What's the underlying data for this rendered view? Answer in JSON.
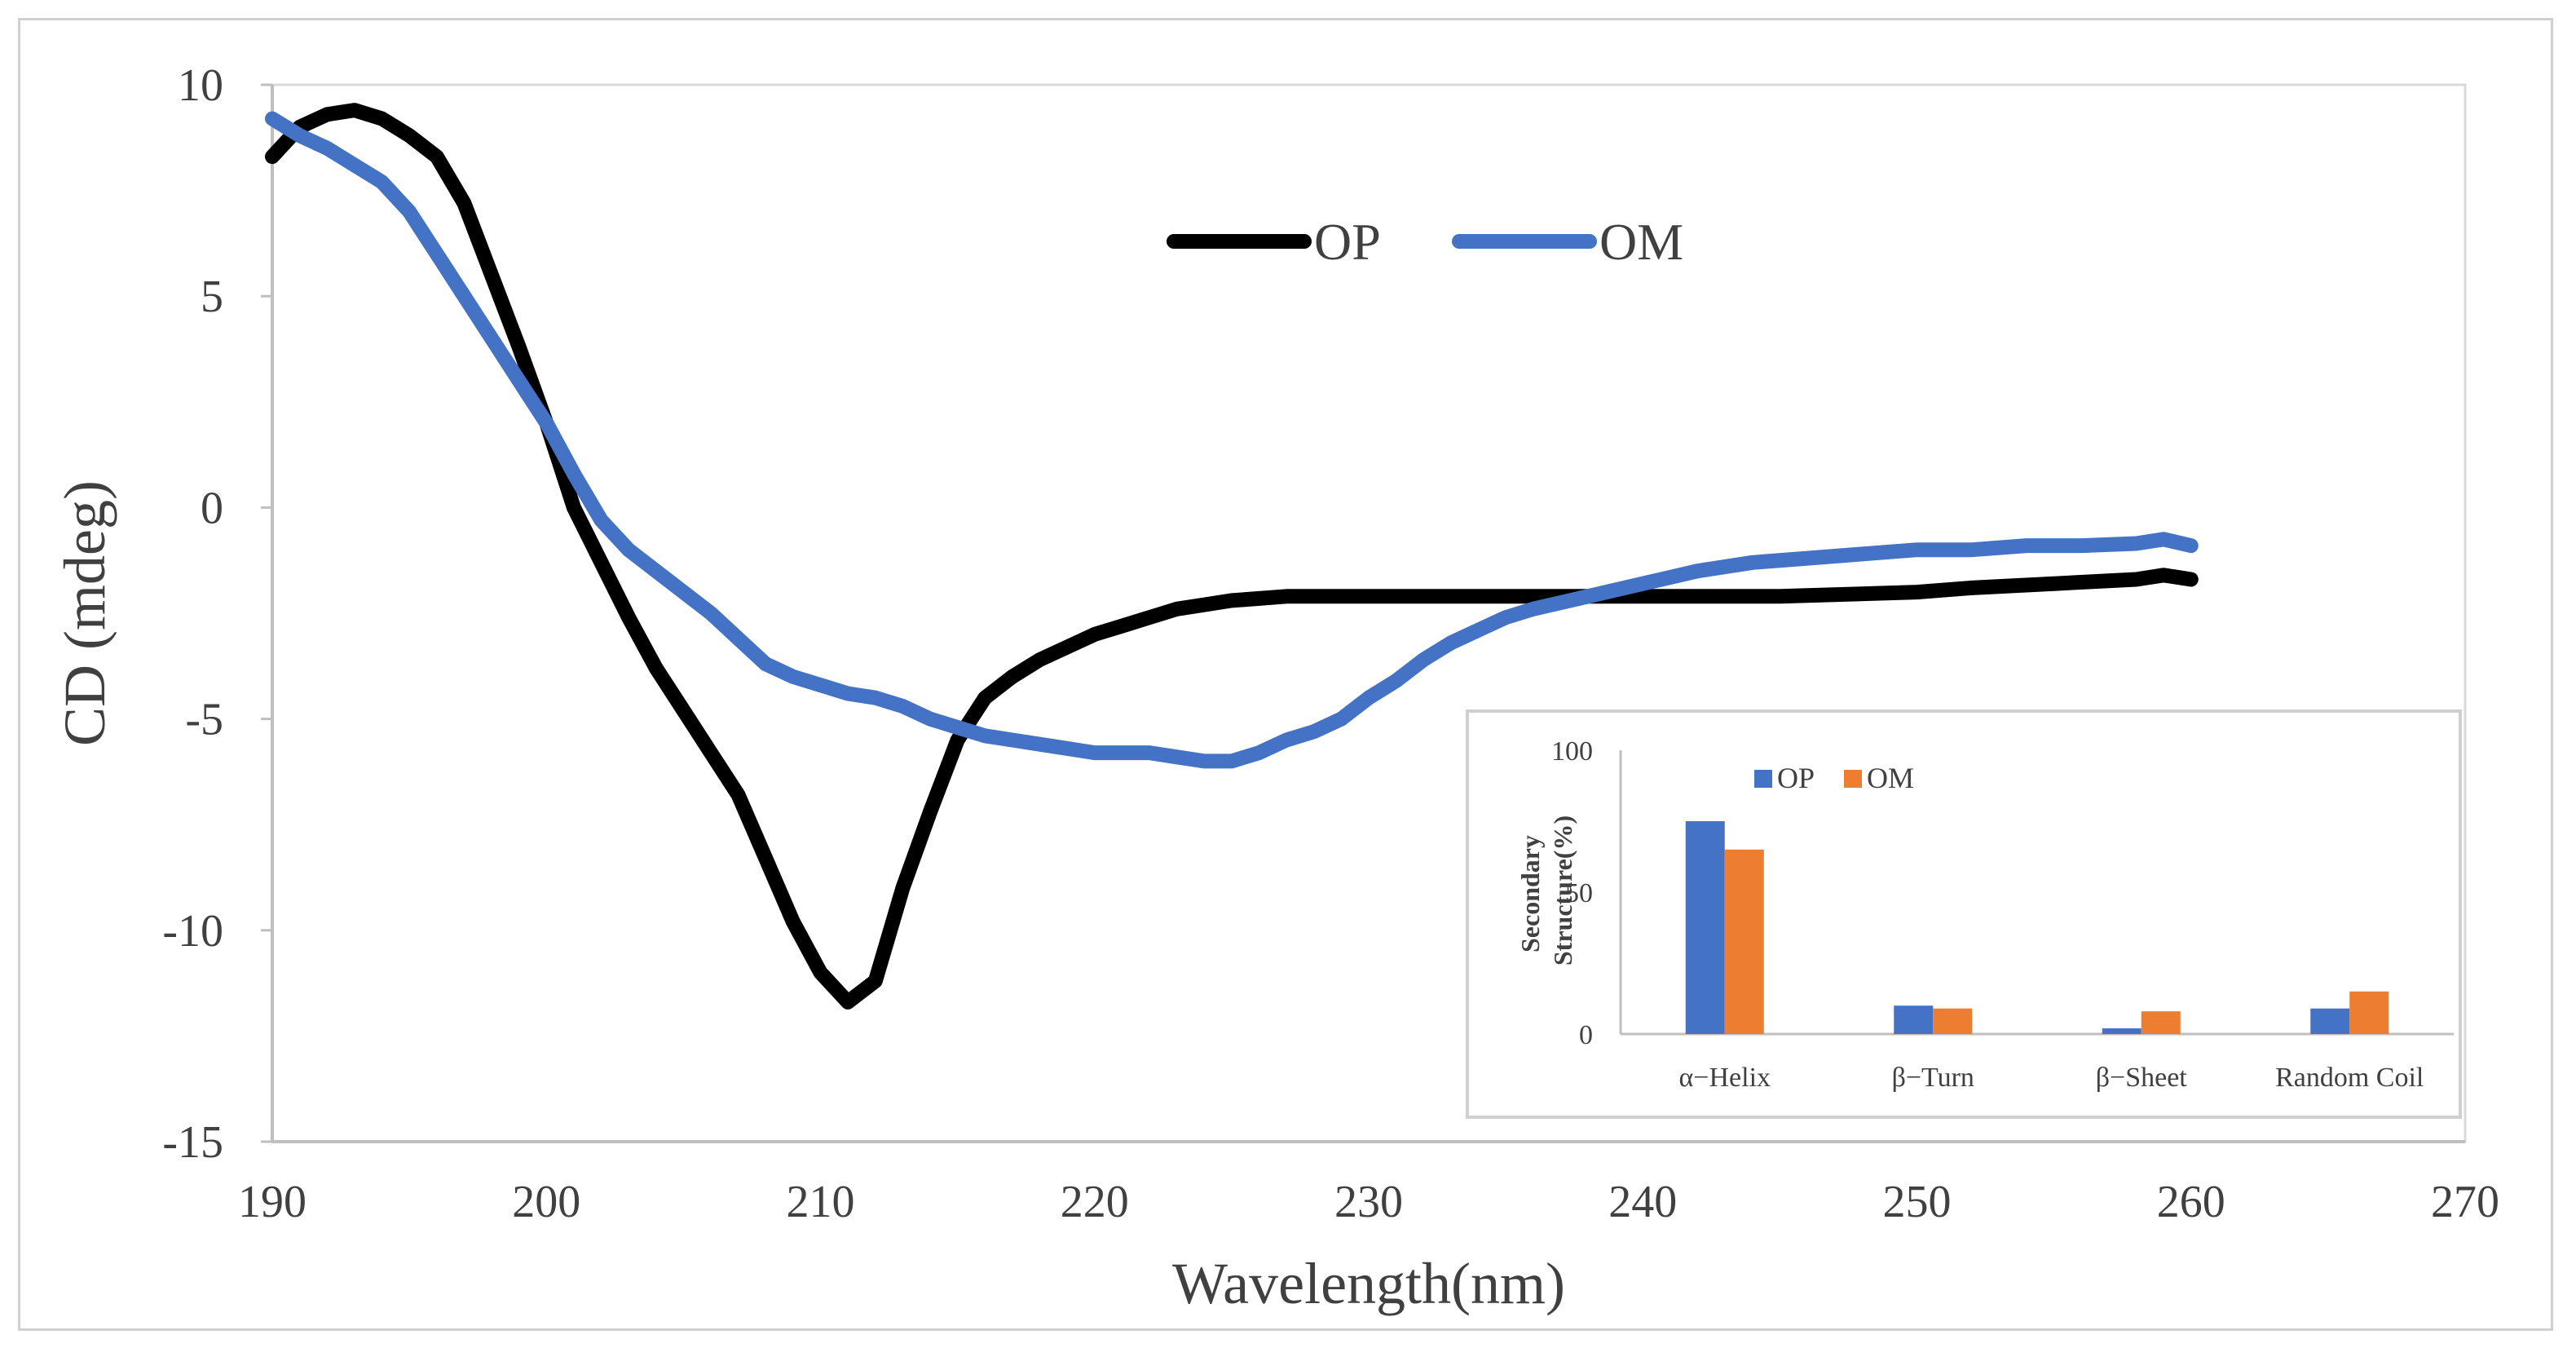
{
  "chart_data": [
    {
      "type": "line",
      "xlabel": "Wavelength(nm)",
      "ylabel": "CD (mdeg)",
      "xlim": [
        190,
        270
      ],
      "ylim": [
        -15,
        10
      ],
      "xticks": [
        "190",
        "200",
        "210",
        "220",
        "230",
        "240",
        "250",
        "260",
        "270"
      ],
      "yticks": [
        "10",
        "5",
        "0",
        "-5",
        "-10",
        "-15"
      ],
      "grid": false,
      "legend_position": "top-center",
      "colors": {
        "OP": "#000000",
        "OM": "#4472C4"
      },
      "series": [
        {
          "name": "OP",
          "x": [
            190,
            191,
            192,
            193,
            194,
            195,
            196,
            197,
            198,
            199,
            200,
            201,
            202,
            203,
            204,
            205,
            206,
            207,
            208,
            209,
            210,
            211,
            212,
            213,
            214,
            215,
            216,
            217,
            218,
            219,
            220,
            221,
            222,
            223,
            224,
            225,
            226,
            227,
            228,
            230,
            235,
            240,
            245,
            250,
            252,
            255,
            258,
            259,
            260
          ],
          "values": [
            8.3,
            9.0,
            9.3,
            9.4,
            9.2,
            8.8,
            8.3,
            7.2,
            5.5,
            3.8,
            2.0,
            0.0,
            -1.3,
            -2.6,
            -3.8,
            -4.8,
            -5.8,
            -6.8,
            -8.3,
            -9.8,
            -11.0,
            -11.7,
            -11.2,
            -9.0,
            -7.2,
            -5.5,
            -4.5,
            -4.0,
            -3.6,
            -3.3,
            -3.0,
            -2.8,
            -2.6,
            -2.4,
            -2.3,
            -2.2,
            -2.15,
            -2.1,
            -2.1,
            -2.1,
            -2.1,
            -2.1,
            -2.1,
            -2.0,
            -1.9,
            -1.8,
            -1.7,
            -1.6,
            -1.7
          ]
        },
        {
          "name": "OM",
          "x": [
            190,
            191,
            192,
            193,
            194,
            195,
            196,
            197,
            198,
            199,
            200,
            201,
            202,
            203,
            204,
            205,
            206,
            207,
            208,
            209,
            210,
            211,
            212,
            213,
            214,
            215,
            216,
            217,
            218,
            219,
            220,
            221,
            222,
            223,
            224,
            225,
            226,
            227,
            228,
            229,
            230,
            231,
            232,
            233,
            234,
            235,
            236,
            238,
            240,
            242,
            244,
            246,
            248,
            250,
            252,
            254,
            256,
            258,
            259,
            260
          ],
          "values": [
            9.2,
            8.8,
            8.5,
            8.1,
            7.7,
            7.0,
            6.0,
            5.0,
            4.0,
            3.0,
            2.0,
            0.8,
            -0.3,
            -1.0,
            -1.5,
            -2.0,
            -2.5,
            -3.1,
            -3.7,
            -4.0,
            -4.2,
            -4.4,
            -4.5,
            -4.7,
            -5.0,
            -5.2,
            -5.4,
            -5.5,
            -5.6,
            -5.7,
            -5.8,
            -5.8,
            -5.8,
            -5.9,
            -6.0,
            -6.0,
            -5.8,
            -5.5,
            -5.3,
            -5.0,
            -4.5,
            -4.1,
            -3.6,
            -3.2,
            -2.9,
            -2.6,
            -2.4,
            -2.1,
            -1.8,
            -1.5,
            -1.3,
            -1.2,
            -1.1,
            -1.0,
            -1.0,
            -0.9,
            -0.9,
            -0.85,
            -0.75,
            -0.9
          ]
        }
      ]
    },
    {
      "type": "bar",
      "ylabel": "Secondary Structure(%)",
      "ylim": [
        0,
        100
      ],
      "yticks": [
        "100",
        "50",
        "0"
      ],
      "categories": [
        "α−Helix",
        "β−Turn",
        "β−Sheet",
        "Random Coil"
      ],
      "legend_position": "top-left",
      "colors": {
        "OP": "#4472C4",
        "OM": "#ED7D31"
      },
      "series": [
        {
          "name": "OP",
          "values": [
            75,
            10,
            2,
            9
          ]
        },
        {
          "name": "OM",
          "values": [
            65,
            9,
            8,
            15
          ]
        }
      ]
    }
  ]
}
